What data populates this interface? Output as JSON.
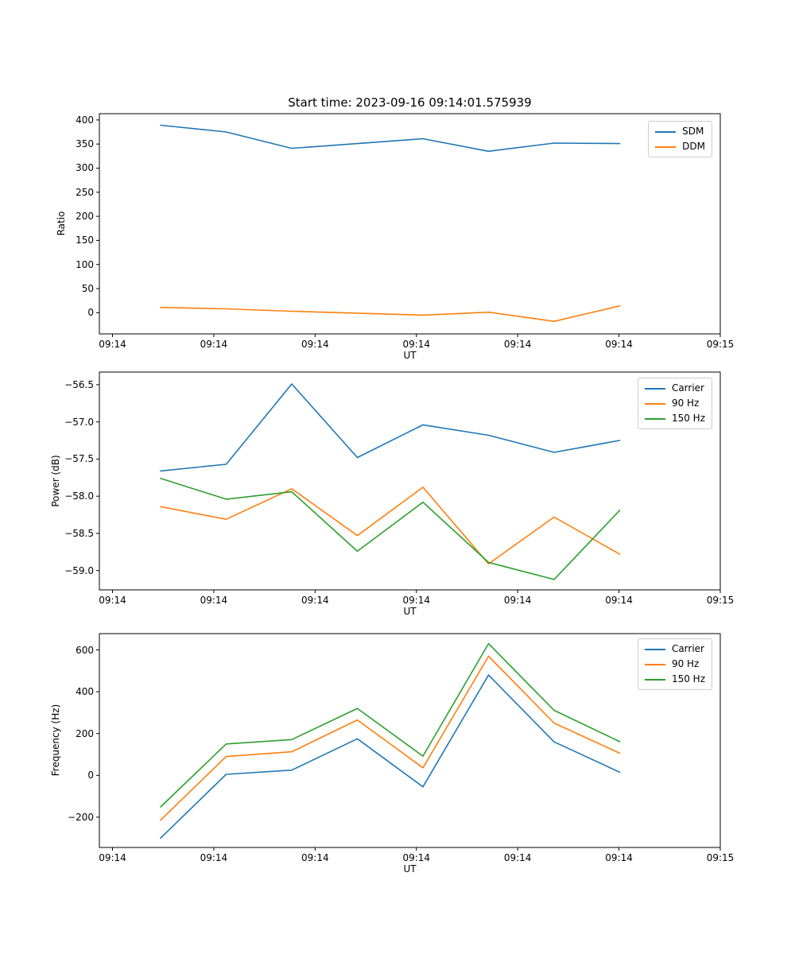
{
  "figure": {
    "title": "Start time: 2023-09-16 09:14:01.575939"
  },
  "colors": {
    "blue": "#1f77b4",
    "orange": "#ff7f0e",
    "green": "#2ca02c",
    "axis": "#000000",
    "legend_border": "#cccccc"
  },
  "chart_data": [
    {
      "type": "line",
      "title": "Start time: 2023-09-16 09:14:01.575939",
      "xlabel": "UT",
      "ylabel": "Ratio",
      "grid": false,
      "legend_position": "upper right",
      "x_tick_labels": [
        "09:14",
        "09:14",
        "09:14",
        "09:14",
        "09:14",
        "09:14",
        "09:15"
      ],
      "yticks": [
        0,
        50,
        100,
        150,
        200,
        250,
        300,
        350,
        400
      ],
      "ytick_labels": [
        "0",
        "50",
        "100",
        "150",
        "200",
        "250",
        "300",
        "350",
        "400"
      ],
      "ylim": [
        -44,
        413
      ],
      "series": [
        {
          "name": "SDM",
          "color": "#1f77b4",
          "values": [
            389,
            375,
            341,
            351,
            361,
            335,
            352,
            351
          ]
        },
        {
          "name": "DDM",
          "color": "#ff7f0e",
          "values": [
            11,
            8,
            3,
            -1,
            -5,
            1,
            -18,
            14
          ]
        }
      ]
    },
    {
      "type": "line",
      "xlabel": "UT",
      "ylabel": "Power (dB)",
      "grid": false,
      "legend_position": "upper right",
      "x_tick_labels": [
        "09:14",
        "09:14",
        "09:14",
        "09:14",
        "09:14",
        "09:14",
        "09:15"
      ],
      "yticks": [
        -59.0,
        -58.5,
        -58.0,
        -57.5,
        -57.0,
        -56.5
      ],
      "ytick_labels": [
        "−59.0",
        "−58.5",
        "−58.0",
        "−57.5",
        "−57.0",
        "−56.5"
      ],
      "ylim": [
        -59.26,
        -56.33
      ],
      "series": [
        {
          "name": "Carrier",
          "color": "#1f77b4",
          "values": [
            -57.66,
            -57.57,
            -56.49,
            -57.48,
            -57.04,
            -57.18,
            -57.41,
            -57.25
          ]
        },
        {
          "name": "90 Hz",
          "color": "#ff7f0e",
          "values": [
            -58.14,
            -58.31,
            -57.9,
            -58.53,
            -57.88,
            -58.91,
            -58.28,
            -58.78
          ]
        },
        {
          "name": "150 Hz",
          "color": "#2ca02c",
          "values": [
            -57.76,
            -58.04,
            -57.94,
            -58.74,
            -58.08,
            -58.89,
            -59.12,
            -58.19
          ]
        }
      ]
    },
    {
      "type": "line",
      "xlabel": "UT",
      "ylabel": "Frequency (Hz)",
      "grid": false,
      "legend_position": "upper right",
      "x_tick_labels": [
        "09:14",
        "09:14",
        "09:14",
        "09:14",
        "09:14",
        "09:14",
        "09:15"
      ],
      "yticks": [
        -200,
        0,
        200,
        400,
        600
      ],
      "ytick_labels": [
        "−200",
        "0",
        "200",
        "400",
        "600"
      ],
      "ylim": [
        -345,
        678
      ],
      "series": [
        {
          "name": "Carrier",
          "color": "#1f77b4",
          "values": [
            -300,
            5,
            25,
            175,
            -55,
            480,
            160,
            15
          ]
        },
        {
          "name": "90 Hz",
          "color": "#ff7f0e",
          "values": [
            -214,
            90,
            113,
            265,
            36,
            570,
            250,
            106
          ]
        },
        {
          "name": "150 Hz",
          "color": "#2ca02c",
          "values": [
            -151,
            150,
            171,
            320,
            92,
            630,
            311,
            161
          ]
        }
      ]
    }
  ]
}
